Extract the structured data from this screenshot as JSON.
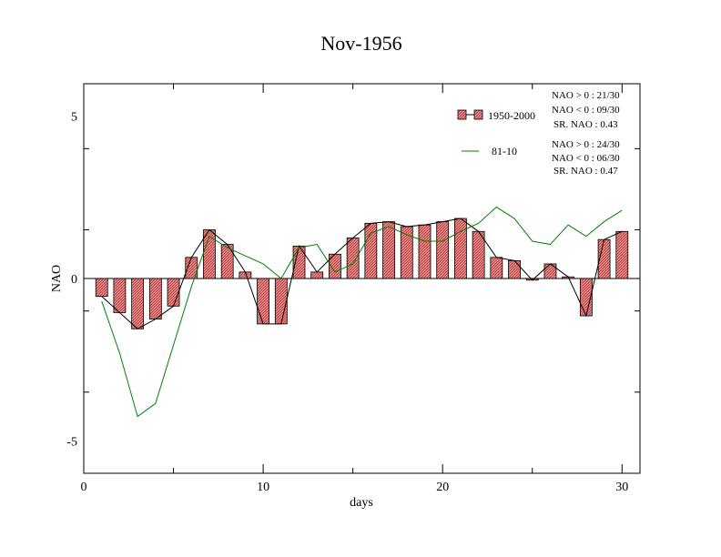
{
  "chart_data": {
    "type": "bar",
    "title": "Nov-1956",
    "xlabel": "days",
    "ylabel": "NAO",
    "xlim": [
      0,
      31
    ],
    "ylim": [
      -6,
      6
    ],
    "xticks": [
      0,
      10,
      20,
      30
    ],
    "yticks": [
      -5,
      0,
      5
    ],
    "x": [
      1,
      2,
      3,
      4,
      5,
      6,
      7,
      8,
      9,
      10,
      11,
      12,
      13,
      14,
      15,
      16,
      17,
      18,
      19,
      20,
      21,
      22,
      23,
      24,
      25,
      26,
      27,
      28,
      29,
      30
    ],
    "series": [
      {
        "name": "1950-2000",
        "kind": "bar",
        "color": "#f08080",
        "values": [
          -0.55,
          -1.05,
          -1.55,
          -1.25,
          -0.85,
          0.65,
          1.5,
          1.05,
          0.2,
          -1.4,
          -1.4,
          1.0,
          0.2,
          0.75,
          1.25,
          1.7,
          1.75,
          1.6,
          1.65,
          1.75,
          1.85,
          1.45,
          0.65,
          0.55,
          -0.05,
          0.45,
          0.05,
          -1.15,
          1.2,
          1.45
        ]
      },
      {
        "name": "81-10",
        "kind": "line",
        "color": "#008000",
        "values": [
          -0.7,
          -2.3,
          -4.25,
          -3.85,
          -2.05,
          -0.25,
          1.3,
          0.95,
          0.7,
          0.45,
          0.0,
          0.95,
          1.05,
          0.2,
          0.45,
          1.4,
          1.6,
          1.35,
          1.15,
          1.15,
          1.45,
          1.7,
          2.2,
          1.85,
          1.15,
          1.05,
          1.65,
          1.3,
          1.75,
          2.1
        ]
      }
    ],
    "stats": [
      {
        "lines": [
          "NAO > 0 : 21/30",
          "NAO < 0 : 09/30",
          "SR. NAO :  0.43"
        ]
      },
      {
        "lines": [
          "NAO > 0 : 24/30",
          "NAO < 0 : 06/30",
          "SR. NAO :  0.47"
        ]
      }
    ],
    "legend_position": "top-right",
    "grid": false
  }
}
